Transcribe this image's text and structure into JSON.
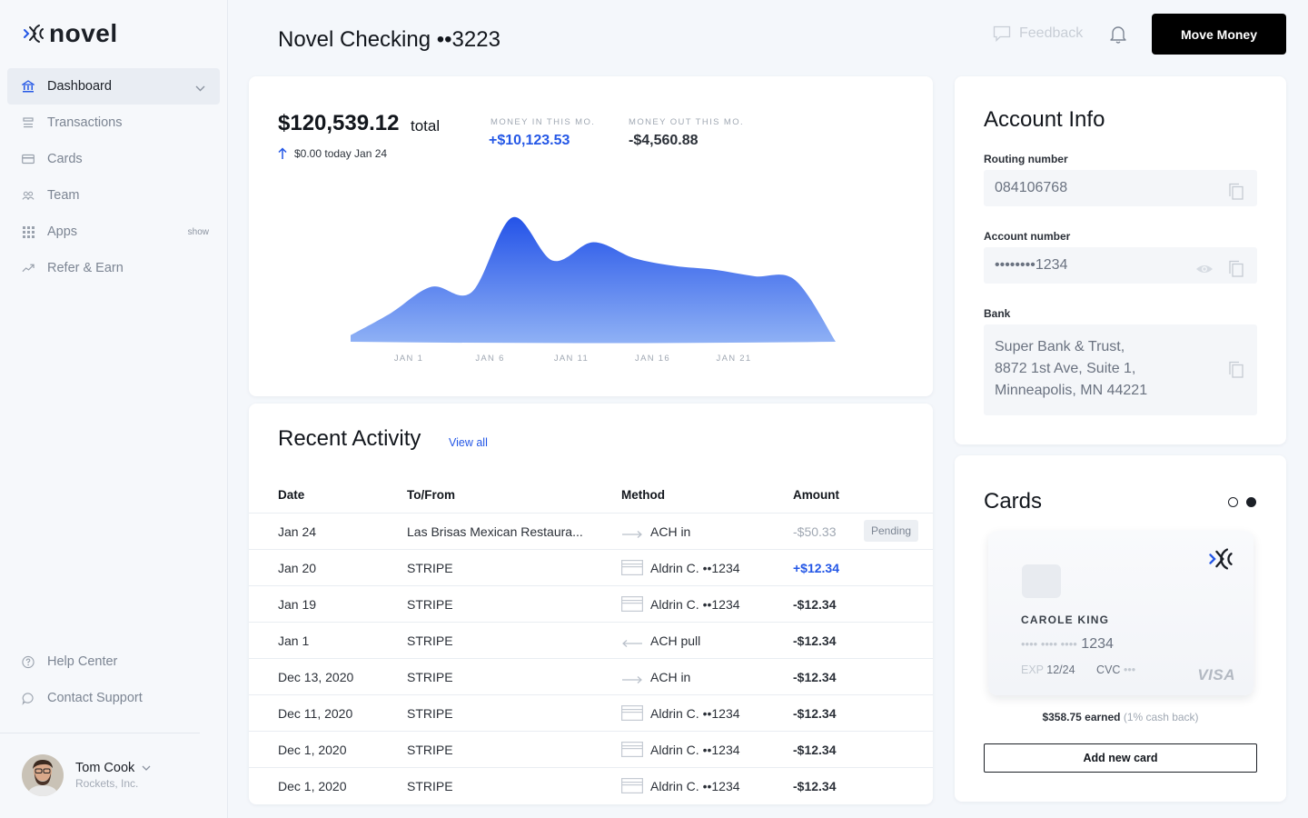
{
  "app": {
    "name": "novel"
  },
  "sidebar": {
    "items": [
      {
        "label": "Dashboard",
        "icon": "bank-icon",
        "active": true
      },
      {
        "label": "Transactions",
        "icon": "list-icon"
      },
      {
        "label": "Cards",
        "icon": "card-icon"
      },
      {
        "label": "Team",
        "icon": "team-icon"
      },
      {
        "label": "Apps",
        "icon": "grid-icon",
        "badge": "show"
      },
      {
        "label": "Refer & Earn",
        "icon": "trend-icon"
      }
    ],
    "bottom": [
      {
        "label": "Help Center",
        "icon": "help-icon"
      },
      {
        "label": "Contact Support",
        "icon": "chat-icon"
      }
    ],
    "user": {
      "name": "Tom Cook",
      "org": "Rockets, Inc."
    }
  },
  "header": {
    "title": "Novel Checking ••3223",
    "feedback": "Feedback",
    "move_money": "Move Money"
  },
  "balance": {
    "amount": "$120,539.12",
    "total_label": "total",
    "today": "$0.00 today Jan 24",
    "money_in_label": "MONEY IN THIS MO.",
    "money_in": "+$10,123.53",
    "money_out_label": "MONEY OUT THIS MO.",
    "money_out": "-$4,560.88",
    "accent": "#2457e6"
  },
  "chart_data": {
    "type": "area",
    "x_ticks": [
      "JAN 1",
      "JAN 6",
      "JAN 11",
      "JAN 16",
      "JAN 21"
    ],
    "x": [
      0,
      1,
      2,
      3,
      4,
      5,
      6,
      7,
      8,
      9,
      10,
      11,
      12
    ],
    "values": [
      5,
      22,
      42,
      38,
      95,
      62,
      76,
      64,
      58,
      55,
      50,
      47,
      0
    ],
    "ylim": [
      0,
      100
    ],
    "grid": false,
    "gradient": [
      "#2453e8",
      "#8fb1f5"
    ]
  },
  "activity": {
    "title": "Recent Activity",
    "view_all": "View all",
    "columns": [
      "Date",
      "To/From",
      "Method",
      "Amount"
    ],
    "rows": [
      {
        "date": "Jan 24",
        "to": "Las Brisas Mexican Restaura...",
        "method": "ACH in",
        "method_icon": "arrow-right-icon",
        "amount": "-$50.33",
        "status": "pending",
        "badge": "Pending"
      },
      {
        "date": "Jan 20",
        "to": "STRIPE",
        "method": "Aldrin C. ••1234",
        "method_icon": "card-icon",
        "amount": "+$12.34",
        "status": "positive"
      },
      {
        "date": "Jan 19",
        "to": "STRIPE",
        "method": "Aldrin C. ••1234",
        "method_icon": "card-icon",
        "amount": "-$12.34"
      },
      {
        "date": "Jan 1",
        "to": "STRIPE",
        "method": "ACH pull",
        "method_icon": "arrow-left-icon",
        "amount": "-$12.34"
      },
      {
        "date": "Dec 13, 2020",
        "to": "STRIPE",
        "method": "ACH in",
        "method_icon": "arrow-right-icon",
        "amount": "-$12.34"
      },
      {
        "date": "Dec 11, 2020",
        "to": "STRIPE",
        "method": "Aldrin C. ••1234",
        "method_icon": "card-icon",
        "amount": "-$12.34"
      },
      {
        "date": "Dec 1, 2020",
        "to": "STRIPE",
        "method": "Aldrin C. ••1234",
        "method_icon": "card-icon",
        "amount": "-$12.34"
      },
      {
        "date": "Dec 1, 2020",
        "to": "STRIPE",
        "method": "Aldrin C. ••1234",
        "method_icon": "card-icon",
        "amount": "-$12.34"
      }
    ]
  },
  "account_info": {
    "title": "Account Info",
    "routing_label": "Routing number",
    "routing": "084106768",
    "account_label": "Account number",
    "account": "••••••••1234",
    "bank_label": "Bank",
    "bank_lines": [
      "Super Bank & Trust,",
      "8872 1st Ave, Suite 1,",
      "Minneapolis, MN 44221"
    ]
  },
  "cards": {
    "title": "Cards",
    "holder": "CAROLE KING",
    "number_mask": "•••• •••• ••••",
    "last4": "1234",
    "exp_label": "EXP",
    "exp": "12/24",
    "cvc_label": "CVC",
    "cvc": "•••",
    "brand": "VISA",
    "earned": "$358.75 earned",
    "cashback": "(1% cash back)",
    "add_label": "Add new card"
  }
}
